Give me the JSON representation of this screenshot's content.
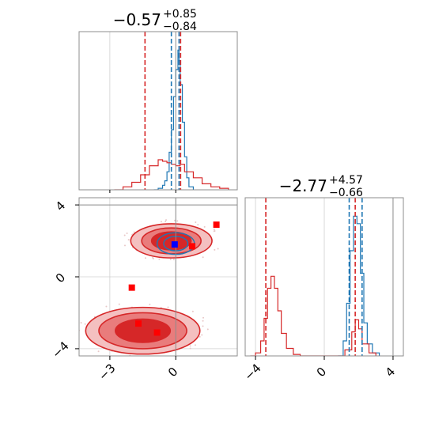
{
  "chart_data": [
    {
      "type": "histogram",
      "panel": "top-left",
      "parameter_index": 0,
      "title": {
        "median": "−0.57",
        "plus": "+0.85",
        "minus": "−0.84"
      },
      "xlim": [
        -4.4,
        2.8
      ],
      "grid": true,
      "series": [
        {
          "name": "",
          "color": "#1f77b4",
          "x": [
            -1.0,
            -0.8,
            -0.6,
            -0.5,
            -0.4,
            -0.3,
            -0.2,
            -0.1,
            0.0,
            0.1,
            0.15,
            0.2,
            0.3,
            0.4,
            0.5,
            0.6,
            0.8
          ],
          "density": [
            0.0,
            0.01,
            0.03,
            0.06,
            0.12,
            0.25,
            0.4,
            0.62,
            0.8,
            0.93,
            0.86,
            0.7,
            0.45,
            0.22,
            0.08,
            0.02,
            0.0
          ]
        },
        {
          "name": "",
          "color": "#d62728",
          "x": [
            -2.8,
            -2.4,
            -2.0,
            -1.6,
            -1.2,
            -0.8,
            -0.6,
            -0.4,
            -0.2,
            0.0,
            0.2,
            0.4,
            0.8,
            1.2,
            1.6,
            2.0,
            2.4
          ],
          "density": [
            0.0,
            0.02,
            0.05,
            0.1,
            0.16,
            0.2,
            0.19,
            0.18,
            0.17,
            0.16,
            0.17,
            0.12,
            0.08,
            0.04,
            0.02,
            0.01,
            0.0
          ]
        }
      ],
      "vlines": [
        {
          "x": -1.4,
          "color": "#d62728",
          "style": "dashed"
        },
        {
          "x": -0.2,
          "color": "#1f77b4",
          "style": "dashed"
        },
        {
          "x": 0.15,
          "color": "#1f77b4",
          "style": "dashed"
        },
        {
          "x": 0.22,
          "color": "#d62728",
          "style": "dashed"
        },
        {
          "x": 0.0,
          "color": "#8c8c8c",
          "style": "solid"
        }
      ]
    },
    {
      "type": "heatmap",
      "panel": "bottom-left",
      "description": "2D contour density",
      "xlim": [
        -4.4,
        2.8
      ],
      "ylim": [
        -4.4,
        4.4
      ],
      "xticks": [
        -3,
        0
      ],
      "xtick_labels": [
        "−3",
        "0"
      ],
      "yticks": [
        4,
        0,
        -4
      ],
      "ytick_labels": [
        "4",
        "0",
        "−4"
      ],
      "grid": true,
      "truth_lines": {
        "x": 0.0,
        "y": 4.0
      },
      "contours": [
        {
          "color": "#d62728",
          "cx": -0.2,
          "cy": 2.0,
          "levels": [
            [
              1.85,
              0.95
            ],
            [
              1.35,
              0.72
            ],
            [
              0.9,
              0.5
            ]
          ]
        },
        {
          "color": "#d62728",
          "cx": -1.5,
          "cy": -3.0,
          "levels": [
            [
              2.6,
              1.3
            ],
            [
              2.0,
              1.0
            ],
            [
              1.25,
              0.65
            ]
          ]
        },
        {
          "color": "#1f77b4",
          "cx": 0.0,
          "cy": 1.85,
          "levels": [
            [
              0.85,
              0.6
            ],
            [
              0.55,
              0.4
            ]
          ]
        }
      ],
      "points": [
        {
          "x": -0.05,
          "y": 1.8,
          "color": "#0000ff",
          "marker": "square"
        },
        {
          "x": 1.85,
          "y": 2.9,
          "color": "#ff0000",
          "marker": "square"
        },
        {
          "x": 0.75,
          "y": 1.7,
          "color": "#ff0000",
          "marker": "square"
        },
        {
          "x": -2.0,
          "y": -0.6,
          "color": "#ff0000",
          "marker": "square"
        },
        {
          "x": -1.7,
          "y": -2.6,
          "color": "#ff0000",
          "marker": "square"
        },
        {
          "x": -0.85,
          "y": -3.1,
          "color": "#ff0000",
          "marker": "square"
        }
      ]
    },
    {
      "type": "histogram",
      "panel": "bottom-right",
      "parameter_index": 1,
      "title": {
        "median": "−2.77",
        "plus": "+4.57",
        "minus": "−0.66"
      },
      "xlim": [
        -4.6,
        4.6
      ],
      "xticks": [
        -4,
        0,
        4
      ],
      "xtick_labels": [
        "−4",
        "0",
        "4"
      ],
      "grid": true,
      "series": [
        {
          "name": "",
          "color": "#1f77b4",
          "x": [
            0.8,
            1.1,
            1.3,
            1.5,
            1.7,
            1.9,
            2.1,
            2.3,
            2.5,
            2.8,
            3.2
          ],
          "density": [
            0.0,
            0.1,
            0.35,
            0.7,
            0.93,
            0.88,
            0.55,
            0.22,
            0.08,
            0.02,
            0.0
          ]
        },
        {
          "name": "",
          "color": "#d62728",
          "x": [
            -4.3,
            -4.0,
            -3.7,
            -3.5,
            -3.3,
            -3.1,
            -2.9,
            -2.7,
            -2.5,
            -2.2,
            -1.8,
            -1.4,
            0.6,
            1.2,
            1.6,
            1.8,
            2.0,
            2.2,
            2.6,
            3.0
          ],
          "density": [
            0.0,
            0.02,
            0.1,
            0.25,
            0.45,
            0.53,
            0.45,
            0.3,
            0.15,
            0.05,
            0.01,
            0.0,
            0.0,
            0.04,
            0.16,
            0.24,
            0.18,
            0.08,
            0.02,
            0.0
          ]
        }
      ],
      "vlines": [
        {
          "x": -3.4,
          "color": "#d62728",
          "style": "dashed"
        },
        {
          "x": 1.45,
          "color": "#1f77b4",
          "style": "dashed"
        },
        {
          "x": 1.8,
          "color": "#d62728",
          "style": "dashed"
        },
        {
          "x": 2.2,
          "color": "#1f77b4",
          "style": "dashed"
        },
        {
          "x": 4.0,
          "color": "#8c8c8c",
          "style": "solid"
        }
      ]
    }
  ]
}
